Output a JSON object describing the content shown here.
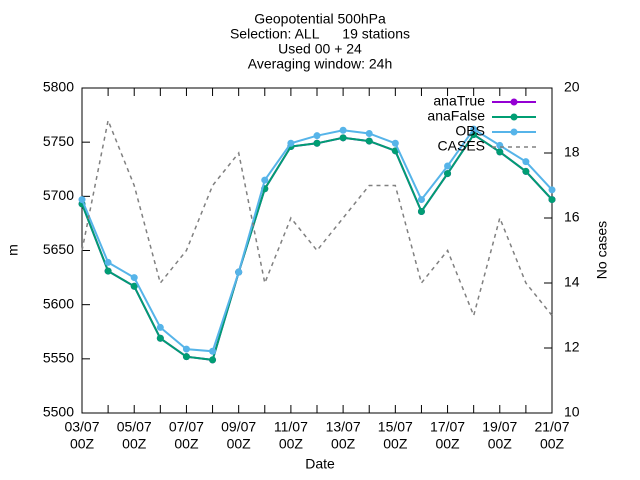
{
  "chart_data": {
    "type": "line",
    "title": [
      "Geopotential 500hPa",
      "Selection: ALL      19 stations",
      "Used 00 + 24",
      "Averaging window: 24h"
    ],
    "x_label": "Date",
    "y_label": "m",
    "y2_label": "No cases",
    "categories": [
      "03/07",
      null,
      "05/07",
      null,
      "07/07",
      null,
      "09/07",
      null,
      "11/07",
      null,
      "13/07",
      null,
      "15/07",
      null,
      "17/07",
      null,
      "19/07",
      null,
      "21/07"
    ],
    "x_sublabel": "00Z",
    "ylim": [
      5500,
      5800
    ],
    "yticks": [
      5500,
      5550,
      5600,
      5650,
      5700,
      5750,
      5800
    ],
    "y2lim": [
      10,
      20
    ],
    "y2ticks": [
      10,
      12,
      14,
      16,
      18,
      20
    ],
    "legend": "top-right",
    "series": [
      {
        "name": "anaTrue",
        "color": "#9400d3",
        "values": [
          5693,
          5631,
          5617,
          5569,
          5552,
          5549,
          5630,
          5707,
          5746,
          5749,
          5754,
          5751,
          5742,
          5686,
          5721,
          5757,
          5741,
          5723,
          5697
        ]
      },
      {
        "name": "anaFalse",
        "color": "#009e73",
        "values": [
          5693,
          5631,
          5617,
          5569,
          5552,
          5549,
          5630,
          5707,
          5746,
          5749,
          5754,
          5751,
          5742,
          5686,
          5721,
          5757,
          5741,
          5723,
          5697
        ]
      },
      {
        "name": "OBS",
        "color": "#56b4e9",
        "values": [
          5697,
          5639,
          5625,
          5579,
          5559,
          5557,
          5630,
          5715,
          5749,
          5756,
          5761,
          5758,
          5749,
          5697,
          5728,
          5762,
          5747,
          5732,
          5706
        ]
      },
      {
        "name": "CASES",
        "color": "#808080",
        "axis": "y2",
        "dashed": true,
        "values": [
          15,
          19,
          17,
          14,
          15,
          17,
          18,
          14,
          16,
          15,
          16,
          17,
          17,
          14,
          15,
          13,
          16,
          14,
          13
        ]
      }
    ]
  }
}
